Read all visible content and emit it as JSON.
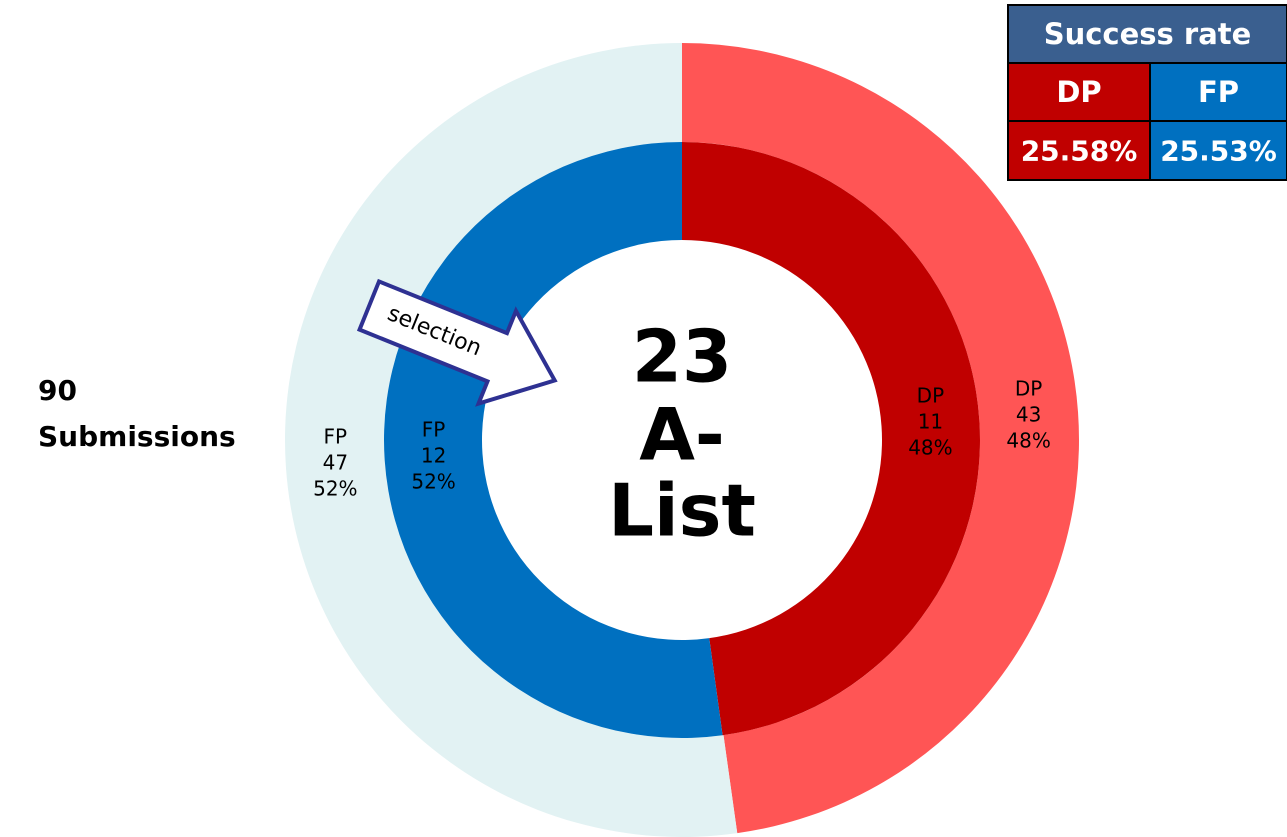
{
  "chart_data": {
    "type": "donut",
    "rings": [
      {
        "categories": [
          "DP",
          "FP"
        ],
        "values": [
          43,
          47
        ],
        "percent_labels": [
          "48%",
          "52%"
        ],
        "colors": [
          "#ff5555",
          "#e2f2f3"
        ]
      },
      {
        "categories": [
          "DP",
          "FP"
        ],
        "values": [
          11,
          12
        ],
        "percent_labels": [
          "48%",
          "52%"
        ],
        "colors": [
          "#c00000",
          "#0070c0"
        ]
      }
    ],
    "center_value": 23,
    "center_label_lines": [
      "A-",
      "List"
    ],
    "total": 90,
    "total_label": "Submissions",
    "annotation": "selection",
    "success_rate": {
      "title": "Success rate",
      "columns": [
        "DP",
        "FP"
      ],
      "values": [
        "25.58%",
        "25.53%"
      ],
      "colors": [
        "#c00000",
        "#0070c0"
      ],
      "header_color": "#3a5f8f"
    }
  }
}
